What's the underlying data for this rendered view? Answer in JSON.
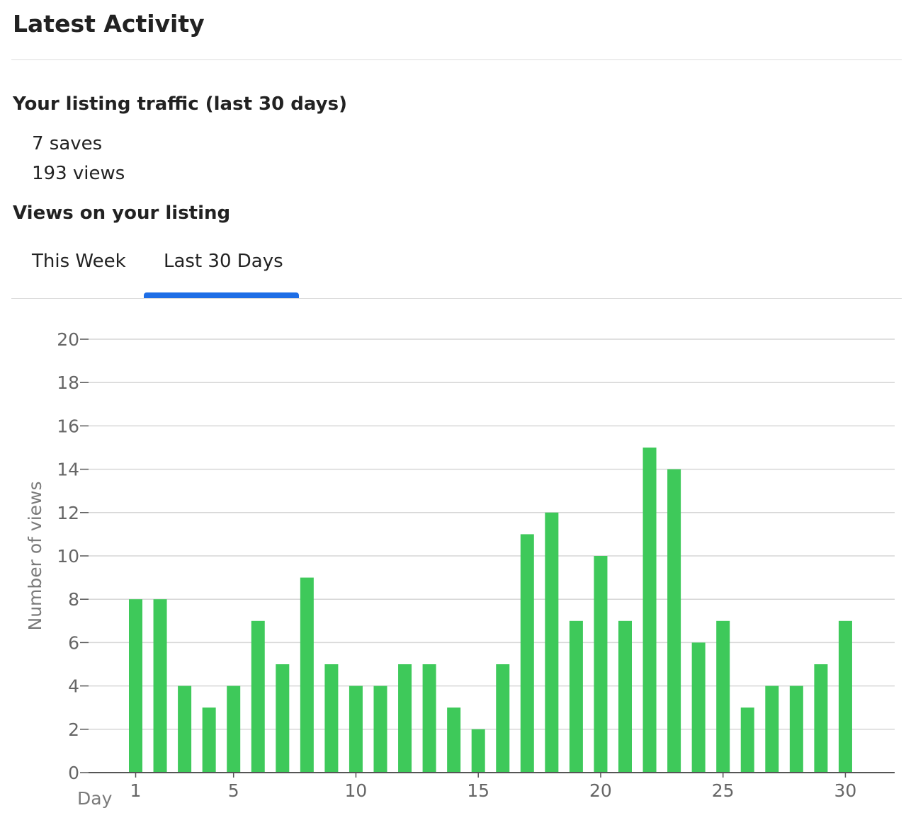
{
  "header": {
    "title": "Latest Activity"
  },
  "traffic": {
    "title": "Your listing traffic (last 30 days)",
    "saves": "7 saves",
    "views": "193 views"
  },
  "views_section": {
    "title": "Views on your listing"
  },
  "tabs": [
    {
      "label": "This Week",
      "active": false
    },
    {
      "label": "Last 30 Days",
      "active": true
    }
  ],
  "colors": {
    "bar": "#3ec95a",
    "tab_indicator": "#1e6ee6",
    "gridline": "#d6d6d6",
    "axis": "#555555"
  },
  "chart_data": {
    "type": "bar",
    "x": [
      1,
      2,
      3,
      4,
      5,
      6,
      7,
      8,
      9,
      10,
      11,
      12,
      13,
      14,
      15,
      16,
      17,
      18,
      19,
      20,
      21,
      22,
      23,
      24,
      25,
      26,
      27,
      28,
      29,
      30
    ],
    "values": [
      8,
      8,
      4,
      3,
      4,
      7,
      5,
      9,
      5,
      4,
      4,
      5,
      5,
      3,
      2,
      5,
      11,
      12,
      7,
      10,
      7,
      15,
      14,
      6,
      7,
      3,
      4,
      4,
      5,
      7
    ],
    "xlabel": "Day",
    "ylabel": "Number of views",
    "x_ticks": [
      1,
      5,
      10,
      15,
      20,
      25,
      30
    ],
    "y_ticks": [
      0,
      2,
      4,
      6,
      8,
      10,
      12,
      14,
      16,
      18,
      20
    ],
    "ylim": [
      0,
      20
    ],
    "grid": true
  }
}
